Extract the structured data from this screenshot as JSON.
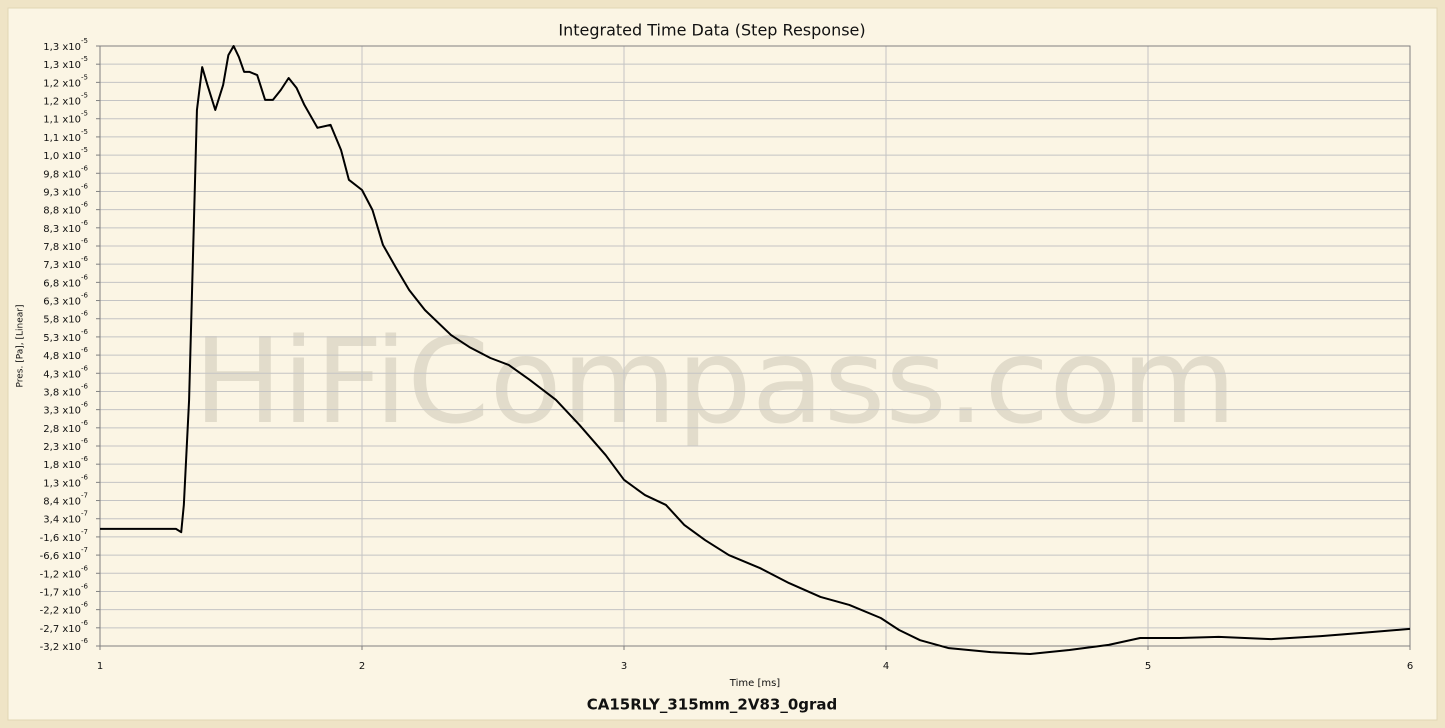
{
  "chart_data": {
    "type": "line",
    "title": "Integrated Time Data (Step Response)",
    "subtitle": "CA15RLY_315mm_2V83_0grad",
    "watermark": "HiFiCompass.com",
    "x_label": "Time [ms]",
    "y_label": "Pres. [Pa], [Linear]",
    "xlim": [
      1,
      6
    ],
    "xticks": [
      1,
      2,
      3,
      4,
      5,
      6
    ],
    "ylim": [
      -3.16e-06,
      1.334e-05
    ],
    "yticks": [
      {
        "value": -3.16e-06,
        "label": "-3,2 x10",
        "exponent": "-6"
      },
      {
        "value": -2.66e-06,
        "label": "-2,7 x10",
        "exponent": "-6"
      },
      {
        "value": -2.16e-06,
        "label": "-2,2 x10",
        "exponent": "-6"
      },
      {
        "value": -1.66e-06,
        "label": "-1,7 x10",
        "exponent": "-6"
      },
      {
        "value": -1.16e-06,
        "label": "-1,2 x10",
        "exponent": "-6"
      },
      {
        "value": -6.6e-07,
        "label": "-6,6 x10",
        "exponent": "-7"
      },
      {
        "value": -1.6e-07,
        "label": "-1,6 x10",
        "exponent": "-7"
      },
      {
        "value": 3.4e-07,
        "label": "3,4 x10",
        "exponent": "-7"
      },
      {
        "value": 8.4e-07,
        "label": "8,4 x10",
        "exponent": "-7"
      },
      {
        "value": 1.34e-06,
        "label": "1,3 x10",
        "exponent": "-6"
      },
      {
        "value": 1.84e-06,
        "label": "1,8 x10",
        "exponent": "-6"
      },
      {
        "value": 2.34e-06,
        "label": "2,3 x10",
        "exponent": "-6"
      },
      {
        "value": 2.84e-06,
        "label": "2,8 x10",
        "exponent": "-6"
      },
      {
        "value": 3.34e-06,
        "label": "3,3 x10",
        "exponent": "-6"
      },
      {
        "value": 3.84e-06,
        "label": "3,8 x10",
        "exponent": "-6"
      },
      {
        "value": 4.34e-06,
        "label": "4,3 x10",
        "exponent": "-6"
      },
      {
        "value": 4.84e-06,
        "label": "4,8 x10",
        "exponent": "-6"
      },
      {
        "value": 5.34e-06,
        "label": "5,3 x10",
        "exponent": "-6"
      },
      {
        "value": 5.84e-06,
        "label": "5,8 x10",
        "exponent": "-6"
      },
      {
        "value": 6.34e-06,
        "label": "6,3 x10",
        "exponent": "-6"
      },
      {
        "value": 6.84e-06,
        "label": "6,8 x10",
        "exponent": "-6"
      },
      {
        "value": 7.34e-06,
        "label": "7,3 x10",
        "exponent": "-6"
      },
      {
        "value": 7.84e-06,
        "label": "7,8 x10",
        "exponent": "-6"
      },
      {
        "value": 8.34e-06,
        "label": "8,3 x10",
        "exponent": "-6"
      },
      {
        "value": 8.84e-06,
        "label": "8,8 x10",
        "exponent": "-6"
      },
      {
        "value": 9.34e-06,
        "label": "9,3 x10",
        "exponent": "-6"
      },
      {
        "value": 9.84e-06,
        "label": "9,8 x10",
        "exponent": "-6"
      },
      {
        "value": 1.034e-05,
        "label": "1,0 x10",
        "exponent": "-5"
      },
      {
        "value": 1.084e-05,
        "label": "1,1 x10",
        "exponent": "-5"
      },
      {
        "value": 1.134e-05,
        "label": "1,1 x10",
        "exponent": "-5"
      },
      {
        "value": 1.184e-05,
        "label": "1,2 x10",
        "exponent": "-5"
      },
      {
        "value": 1.234e-05,
        "label": "1,2 x10",
        "exponent": "-5"
      },
      {
        "value": 1.284e-05,
        "label": "1,3 x10",
        "exponent": "-5"
      },
      {
        "value": 1.334e-05,
        "label": "1,3 x10",
        "exponent": "-5"
      }
    ],
    "grid": true,
    "color": "#000000",
    "x": [
      1.0,
      1.29,
      1.31,
      1.32,
      1.34,
      1.37,
      1.39,
      1.41,
      1.44,
      1.47,
      1.49,
      1.51,
      1.53,
      1.55,
      1.57,
      1.6,
      1.63,
      1.66,
      1.69,
      1.72,
      1.75,
      1.78,
      1.83,
      1.88,
      1.92,
      1.95,
      2.0,
      2.04,
      2.08,
      2.13,
      2.18,
      2.24,
      2.34,
      2.41,
      2.49,
      2.56,
      2.64,
      2.74,
      2.83,
      2.93,
      3.0,
      3.08,
      3.16,
      3.23,
      3.31,
      3.4,
      3.52,
      3.63,
      3.75,
      3.86,
      3.98,
      4.05,
      4.13,
      4.24,
      4.4,
      4.55,
      4.7,
      4.85,
      4.97,
      5.12,
      5.27,
      5.47,
      5.66,
      5.85,
      6.0
    ],
    "values": [
      6e-08,
      6e-08,
      -3e-08,
      7.2e-07,
      3.6e-06,
      1.158e-05,
      1.276e-05,
      1.227e-05,
      1.158e-05,
      1.227e-05,
      1.309e-05,
      1.334e-05,
      1.304e-05,
      1.263e-05,
      1.263e-05,
      1.254e-05,
      1.186e-05,
      1.186e-05,
      1.213e-05,
      1.246e-05,
      1.219e-05,
      1.172e-05,
      1.109e-05,
      1.117e-05,
      1.048e-05,
      9.66e-06,
      9.38e-06,
      8.83e-06,
      7.87e-06,
      7.24e-06,
      6.63e-06,
      6.08e-06,
      5.39e-06,
      5.06e-06,
      4.76e-06,
      4.57e-06,
      4.16e-06,
      3.61e-06,
      2.92e-06,
      2.09e-06,
      1.41e-06,
      9.9e-07,
      7.2e-07,
      1.7e-07,
      -2.5e-07,
      -6.6e-07,
      -1.02e-06,
      -1.43e-06,
      -1.81e-06,
      -2.03e-06,
      -2.39e-06,
      -2.72e-06,
      -3e-06,
      -3.22e-06,
      -3.33e-06,
      -3.38e-06,
      -3.27e-06,
      -3.13e-06,
      -2.94e-06,
      -2.94e-06,
      -2.91e-06,
      -2.97e-06,
      -2.89e-06,
      -2.78e-06,
      -2.69e-06
    ]
  }
}
